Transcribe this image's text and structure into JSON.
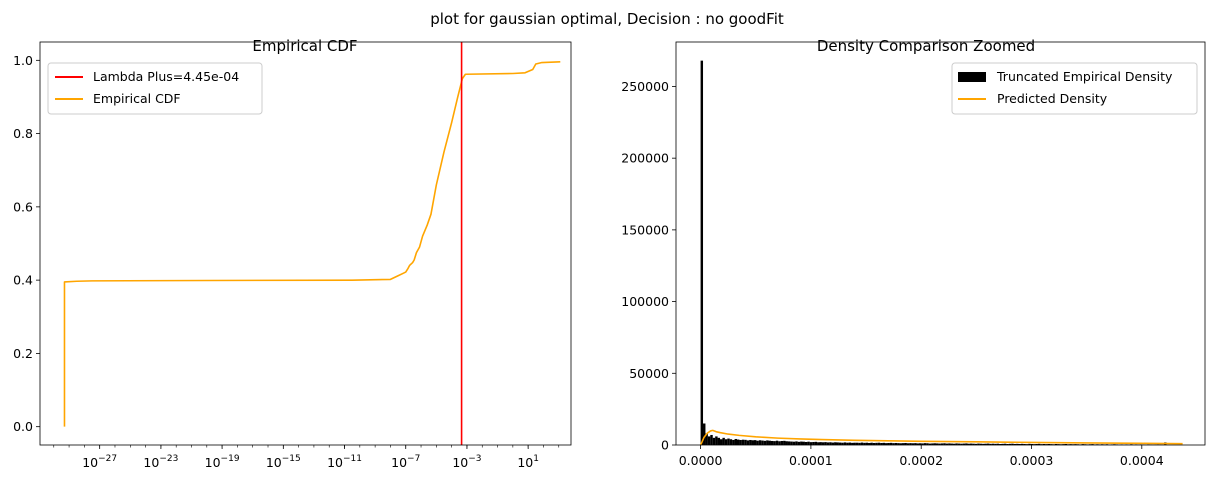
{
  "figure": {
    "suptitle": "plot for gaussian optimal, Decision : no goodFit"
  },
  "colors": {
    "cdf_line": "#ffa500",
    "vline": "#ff0000",
    "hist": "#000000",
    "predicted": "#ffa500"
  },
  "chart_data": [
    {
      "type": "line",
      "title": "Empirical CDF",
      "xlabel": "",
      "ylabel": "",
      "xscale": "log",
      "xlim_log10": [
        -30.9,
        3.8
      ],
      "ylim": [
        -0.05,
        1.05
      ],
      "x_ticks": [
        {
          "exp": -27,
          "base": "10",
          "sup": "−27"
        },
        {
          "exp": -23,
          "base": "10",
          "sup": "−23"
        },
        {
          "exp": -19,
          "base": "10",
          "sup": "−19"
        },
        {
          "exp": -15,
          "base": "10",
          "sup": "−15"
        },
        {
          "exp": -11,
          "base": "10",
          "sup": "−11"
        },
        {
          "exp": -7,
          "base": "10",
          "sup": "−7"
        },
        {
          "exp": -3,
          "base": "10",
          "sup": "−3"
        },
        {
          "exp": 1,
          "base": "10",
          "sup": "1"
        }
      ],
      "y_ticks": [
        {
          "value": 0.0,
          "label": "0.0"
        },
        {
          "value": 0.2,
          "label": "0.2"
        },
        {
          "value": 0.4,
          "label": "0.4"
        },
        {
          "value": 0.6,
          "label": "0.6"
        },
        {
          "value": 0.8,
          "label": "0.8"
        },
        {
          "value": 1.0,
          "label": "1.0"
        }
      ],
      "vline": {
        "x_log10": -3.35,
        "label": "Lambda Plus=4.45e-04"
      },
      "series": [
        {
          "name": "Empirical CDF",
          "points_log10x": [
            [
              -29.3,
              0.0
            ],
            [
              -29.3,
              0.395
            ],
            [
              -28.5,
              0.397
            ],
            [
              -27.5,
              0.398
            ],
            [
              -20,
              0.399
            ],
            [
              -10.5,
              0.4
            ],
            [
              -8.0,
              0.402
            ],
            [
              -7.5,
              0.412
            ],
            [
              -7.2,
              0.418
            ],
            [
              -7.0,
              0.422
            ],
            [
              -6.85,
              0.432
            ],
            [
              -6.75,
              0.44
            ],
            [
              -6.55,
              0.448
            ],
            [
              -6.45,
              0.455
            ],
            [
              -6.3,
              0.475
            ],
            [
              -6.1,
              0.49
            ],
            [
              -5.9,
              0.52
            ],
            [
              -5.6,
              0.55
            ],
            [
              -5.35,
              0.58
            ],
            [
              -5.0,
              0.66
            ],
            [
              -4.5,
              0.75
            ],
            [
              -4.0,
              0.83
            ],
            [
              -3.6,
              0.9
            ],
            [
              -3.3,
              0.95
            ],
            [
              -3.1,
              0.962
            ],
            [
              0.0,
              0.964
            ],
            [
              0.8,
              0.966
            ],
            [
              1.3,
              0.975
            ],
            [
              1.5,
              0.99
            ],
            [
              1.9,
              0.994
            ],
            [
              3.1,
              0.996
            ]
          ]
        }
      ],
      "legend": {
        "placement": "upper-left"
      }
    },
    {
      "type": "bar",
      "title": "Density Comparison Zoomed",
      "xlabel": "",
      "ylabel": "",
      "xlim": [
        -2.23e-05,
        0.0004573
      ],
      "ylim": [
        0,
        281000
      ],
      "x_ticks": [
        {
          "value": 0.0,
          "label": "0.0000"
        },
        {
          "value": 0.0001,
          "label": "0.0001"
        },
        {
          "value": 0.0002,
          "label": "0.0002"
        },
        {
          "value": 0.0003,
          "label": "0.0003"
        },
        {
          "value": 0.0004,
          "label": "0.0004"
        }
      ],
      "y_ticks": [
        {
          "value": 0,
          "label": "0"
        },
        {
          "value": 50000,
          "label": "50000"
        },
        {
          "value": 100000,
          "label": "100000"
        },
        {
          "value": 150000,
          "label": "150000"
        },
        {
          "value": 200000,
          "label": "200000"
        },
        {
          "value": 250000,
          "label": "250000"
        }
      ],
      "bin_width": 2.2e-06,
      "histogram": {
        "name": "Truncated Empirical Density",
        "bin_starts": [
          0.0,
          2.2e-06,
          4.4e-06,
          6.6e-06,
          8.8e-06,
          1.1e-05,
          1.32e-05,
          1.54e-05,
          1.76e-05,
          1.98e-05,
          2.2e-05,
          2.42e-05,
          2.64e-05,
          2.86e-05,
          3.08e-05,
          3.3e-05,
          3.52e-05,
          3.74e-05,
          3.96e-05,
          4.18e-05,
          4.4e-05,
          4.62e-05,
          4.84e-05,
          5.06e-05,
          5.28e-05,
          5.5e-05,
          5.72e-05,
          5.94e-05,
          6.16e-05,
          6.38e-05,
          6.6e-05,
          6.82e-05,
          7.04e-05,
          7.26e-05,
          7.48e-05,
          7.7e-05,
          7.92e-05,
          8.14e-05,
          8.36e-05,
          8.58e-05,
          8.8e-05,
          9.02e-05,
          9.24e-05,
          9.46e-05,
          9.68e-05,
          9.9e-05,
          0.0001012,
          0.0001034,
          0.0001056,
          0.0001078,
          0.00011,
          0.0001122,
          0.0001144,
          0.0001166,
          0.0001188,
          0.000121,
          0.0001232,
          0.0001254,
          0.0001276,
          0.0001298,
          0.000132,
          0.0001342,
          0.0001364,
          0.0001386,
          0.0001408,
          0.000143,
          0.0001452,
          0.0001474,
          0.0001496,
          0.0001518,
          0.000154,
          0.0001562,
          0.0001584,
          0.0001606,
          0.0001628,
          0.000165,
          0.0001672,
          0.0001694,
          0.0001716,
          0.0001738,
          0.000176,
          0.0001782,
          0.0001804,
          0.0001826,
          0.0001848,
          0.000187,
          0.0001892,
          0.0001914,
          0.0001936,
          0.0001958,
          0.000198,
          0.0002002,
          0.0002024,
          0.0002046,
          0.0002068,
          0.000209,
          0.0002112,
          0.0002134,
          0.0002156,
          0.0002178,
          0.00022,
          0.0002222,
          0.0002244,
          0.0002266,
          0.0002288,
          0.000231,
          0.0002332,
          0.0002354,
          0.0002376,
          0.0002398,
          0.000242,
          0.0002442,
          0.0002464,
          0.0002486,
          0.0002508,
          0.000253,
          0.0002552,
          0.0002574,
          0.0002596,
          0.0002618,
          0.000264,
          0.0002662,
          0.0002684,
          0.0002706,
          0.0002728,
          0.000275,
          0.0002772,
          0.0002794,
          0.0002816,
          0.0002838,
          0.000286,
          0.0002882,
          0.0002904,
          0.0002926,
          0.0002948,
          0.000297,
          0.0002992,
          0.0003014,
          0.0003036,
          0.0003058,
          0.000308,
          0.0003102,
          0.0003124,
          0.0003146,
          0.0003168,
          0.000319,
          0.0003212,
          0.0003234,
          0.0003256,
          0.0003278,
          0.00033,
          0.0003322,
          0.0003344,
          0.0003366,
          0.0003388,
          0.000341,
          0.0003432,
          0.0003454,
          0.0003476,
          0.0003498,
          0.000352,
          0.0003542,
          0.0003564,
          0.0003586,
          0.0003608,
          0.000363,
          0.0003652,
          0.0003674,
          0.0003696,
          0.0003718,
          0.000374,
          0.0003762,
          0.0003784,
          0.0003806,
          0.0003828,
          0.000385,
          0.0003872,
          0.0003894,
          0.0003916,
          0.0003938,
          0.000396,
          0.0003982,
          0.0004004,
          0.0004026,
          0.0004048,
          0.000407,
          0.0004092,
          0.0004114,
          0.0004136,
          0.0004158,
          0.000418,
          0.0004202,
          0.0004224,
          0.0004246,
          0.0004268,
          0.000429,
          0.0004312,
          0.0004334,
          0.0004356
        ],
        "values": [
          268000,
          15000,
          8000,
          6000,
          7000,
          5000,
          6000,
          5000,
          4000,
          5000,
          4000,
          4500,
          4000,
          3500,
          4200,
          3800,
          3500,
          3700,
          3600,
          3200,
          3500,
          3300,
          3400,
          3000,
          3300,
          3100,
          2900,
          3200,
          3000,
          2800,
          2700,
          3000,
          2600,
          2800,
          2900,
          2600,
          2500,
          2400,
          2300,
          2500,
          2200,
          2400,
          2300,
          2100,
          2300,
          2000,
          2100,
          2200,
          1900,
          2000,
          1900,
          2000,
          1800,
          1900,
          1700,
          1900,
          1800,
          1700,
          1600,
          1800,
          1600,
          1700,
          1500,
          1600,
          1600,
          1500,
          1700,
          1500,
          1600,
          1400,
          1600,
          1400,
          1500,
          1600,
          1400,
          1500,
          1300,
          1400,
          1500,
          1300,
          1400,
          1300,
          1200,
          1300,
          1400,
          1200,
          1300,
          1200,
          1300,
          1100,
          1200,
          1100,
          1300,
          1200,
          1000,
          1100,
          1200,
          1100,
          1000,
          1100,
          1200,
          1000,
          1100,
          1000,
          900,
          1100,
          1000,
          900,
          1000,
          1100,
          900,
          1000,
          900,
          800,
          1000,
          900,
          800,
          900,
          1000,
          800,
          900,
          800,
          900,
          700,
          800,
          900,
          700,
          800,
          900,
          700,
          800,
          700,
          800,
          700,
          600,
          800,
          700,
          600,
          700,
          800,
          600,
          700,
          600,
          700,
          600,
          500,
          700,
          600,
          500,
          600,
          700,
          500,
          600,
          500,
          600,
          500,
          400,
          600,
          500,
          400,
          500,
          600,
          400,
          500,
          400,
          500,
          400,
          500,
          300,
          400,
          500,
          400,
          300,
          400,
          300,
          400,
          300,
          500,
          300,
          400,
          300,
          400,
          300,
          200,
          400,
          300,
          200,
          300,
          400,
          300,
          200,
          1800
        ]
      },
      "series": [
        {
          "name": "Predicted Density",
          "points": [
            [
              0.0,
              0
            ],
            [
              1.5e-06,
              2500
            ],
            [
              3e-06,
              5200
            ],
            [
              6e-06,
              8200
            ],
            [
              9e-06,
              9800
            ],
            [
              1.1e-05,
              10200
            ],
            [
              1.4e-05,
              9300
            ],
            [
              1.8e-05,
              8600
            ],
            [
              2.5e-05,
              7600
            ],
            [
              3.5e-05,
              6700
            ],
            [
              5e-05,
              5700
            ],
            [
              7e-05,
              4800
            ],
            [
              9e-05,
              4200
            ],
            [
              0.00011,
              3800
            ],
            [
              0.00014,
              3300
            ],
            [
              0.00017,
              2900
            ],
            [
              0.0002,
              2600
            ],
            [
              0.00025,
              2200
            ],
            [
              0.0003,
              1800
            ],
            [
              0.00035,
              1450
            ],
            [
              0.0004,
              1150
            ],
            [
              0.000437,
              950
            ]
          ]
        }
      ],
      "legend": {
        "placement": "upper-right"
      }
    }
  ]
}
